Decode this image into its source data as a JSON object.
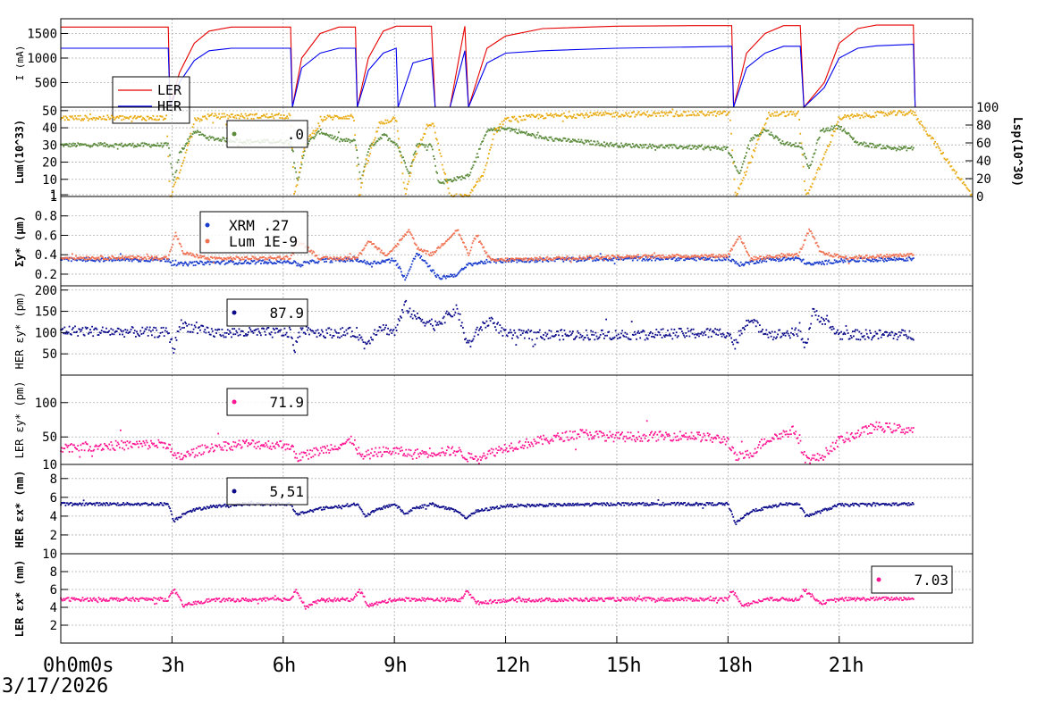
{
  "date_label": "3/17/2026",
  "x_axis": {
    "ticks": [
      {
        "h": 0,
        "label": "0h0m0s"
      },
      {
        "h": 3,
        "label": "3h"
      },
      {
        "h": 6,
        "label": "6h"
      },
      {
        "h": 9,
        "label": "9h"
      },
      {
        "h": 12,
        "label": "12h"
      },
      {
        "h": 15,
        "label": "15h"
      },
      {
        "h": 18,
        "label": "18h"
      },
      {
        "h": 21,
        "label": "21h"
      }
    ],
    "range_h": [
      0,
      24.6
    ]
  },
  "colors": {
    "ler": "#e60000",
    "her": "#0000ee",
    "lum": "#5a8a3a",
    "lsp": "#e8aa10",
    "xrm": "#1a3ccc",
    "lum_sigma": "#f07050",
    "her_pts": "#0a0a8a",
    "ler_pts": "#ff1493",
    "grid": "#b0b0b0"
  },
  "chart_data": [
    {
      "id": "current",
      "type": "line",
      "ylabel": "I (mA)",
      "ylim": [
        0,
        1800
      ],
      "yticks": [
        500,
        1000,
        1500
      ],
      "grid": true,
      "legend": {
        "placement": "top-left",
        "entries": [
          "LER",
          "HER"
        ]
      },
      "series": [
        {
          "name": "LER",
          "x": [
            0,
            2.9,
            2.95,
            3.2,
            3.6,
            4.0,
            4.6,
            6.2,
            6.25,
            6.5,
            7.0,
            7.5,
            7.95,
            8.0,
            8.3,
            8.7,
            9.05,
            9.1,
            10.0,
            10.1,
            10.5,
            10.9,
            11.0,
            11.5,
            12.0,
            13.0,
            15.0,
            17.0,
            18.1,
            18.15,
            18.5,
            19.0,
            19.5,
            19.95,
            20.05,
            20.6,
            21.0,
            21.5,
            22.0,
            23.0,
            23.05,
            24.6
          ],
          "y": [
            1630,
            1630,
            0,
            700,
            1300,
            1550,
            1630,
            1630,
            0,
            1000,
            1500,
            1630,
            1630,
            0,
            1000,
            1550,
            1650,
            1650,
            1650,
            0,
            0,
            1650,
            0,
            1200,
            1450,
            1600,
            1650,
            1660,
            1660,
            0,
            1100,
            1500,
            1660,
            1660,
            0,
            500,
            1300,
            1600,
            1670,
            1670,
            0,
            0
          ]
        },
        {
          "name": "HER",
          "x": [
            0,
            2.9,
            2.95,
            3.2,
            3.6,
            4.0,
            4.6,
            6.2,
            6.25,
            6.5,
            7.0,
            7.5,
            7.95,
            8.0,
            8.3,
            8.7,
            9.05,
            9.1,
            9.5,
            10.0,
            10.1,
            10.5,
            10.9,
            11.0,
            11.5,
            12.0,
            13.0,
            15.0,
            18.1,
            18.15,
            18.5,
            19.0,
            19.5,
            19.95,
            20.05,
            20.6,
            21.0,
            21.5,
            22.0,
            23.0,
            23.05,
            24.6
          ],
          "y": [
            1200,
            1200,
            0,
            500,
            950,
            1150,
            1200,
            1200,
            0,
            800,
            1100,
            1200,
            1200,
            0,
            750,
            1100,
            1200,
            0,
            900,
            1000,
            0,
            0,
            1150,
            0,
            900,
            1100,
            1150,
            1200,
            1240,
            0,
            800,
            1100,
            1240,
            1240,
            0,
            400,
            1000,
            1200,
            1250,
            1280,
            0,
            0
          ]
        }
      ]
    },
    {
      "id": "luminosity",
      "type": "scatter",
      "ylabel": "Lum(10^33)",
      "ylabel2": "Lsp(10^30)",
      "ylim": [
        0,
        52
      ],
      "yticks": [
        1,
        10,
        20,
        30,
        40,
        50
      ],
      "y2lim": [
        0,
        100
      ],
      "y2ticks": [
        0,
        20,
        40,
        60,
        80,
        100
      ],
      "grid": true,
      "legend": {
        "placement": "top-left",
        "entries": [
          ".0"
        ]
      },
      "series": [
        {
          "name": "Lum",
          "axis": "left",
          "x": [
            0,
            2.9,
            3.05,
            3.2,
            3.6,
            4.0,
            5.0,
            6.2,
            6.4,
            6.6,
            7.0,
            7.5,
            7.95,
            8.1,
            8.3,
            8.7,
            9.05,
            9.4,
            9.6,
            10.0,
            10.2,
            11.0,
            11.5,
            12.0,
            13.0,
            15.0,
            18.0,
            18.3,
            18.6,
            19.0,
            19.5,
            19.95,
            20.2,
            20.5,
            21.0,
            21.5,
            22.5,
            23.0
          ],
          "y": [
            30,
            30,
            8,
            25,
            38,
            34,
            32,
            32,
            8,
            30,
            38,
            33,
            32,
            8,
            28,
            36,
            31,
            14,
            30,
            30,
            8,
            12,
            38,
            40,
            34,
            30,
            28,
            12,
            33,
            39,
            31,
            30,
            16,
            38,
            41,
            31,
            28,
            28
          ]
        },
        {
          "name": "Lsp",
          "axis": "right",
          "x": [
            0,
            2.85,
            2.95,
            3.2,
            3.6,
            4.0,
            4.6,
            6.2,
            6.3,
            6.6,
            7.1,
            7.9,
            8.05,
            8.2,
            8.6,
            9.05,
            9.3,
            9.5,
            9.9,
            10.05,
            10.5,
            11.0,
            11.4,
            11.7,
            12.0,
            13.0,
            15.0,
            18.05,
            18.2,
            18.6,
            19.1,
            19.9,
            20.1,
            20.5,
            21.0,
            22.0,
            23.0,
            24.6
          ],
          "y": [
            88,
            88,
            0,
            25,
            85,
            90,
            90,
            90,
            0,
            60,
            88,
            90,
            0,
            30,
            82,
            88,
            0,
            40,
            80,
            80,
            0,
            0,
            25,
            72,
            86,
            90,
            92,
            93,
            0,
            40,
            92,
            93,
            0,
            35,
            88,
            92,
            94,
            0
          ]
        }
      ]
    },
    {
      "id": "sigma_y",
      "type": "scatter",
      "ylabel": "Σy* (μm)",
      "ylim": [
        0.08,
        1.0
      ],
      "yticks": [
        0.2,
        0.4,
        0.6,
        0.8,
        1
      ],
      "grid": true,
      "legend": {
        "placement": "top-left",
        "entries": [
          "XRM  .27",
          "Lum 1E-9"
        ]
      },
      "series": [
        {
          "name": "XRM",
          "x": [
            0,
            2.9,
            3.1,
            4.0,
            6.2,
            6.4,
            7.0,
            8.0,
            8.3,
            9.0,
            9.3,
            9.6,
            10.2,
            10.7,
            11.0,
            11.5,
            12.0,
            15.0,
            18.0,
            18.3,
            19.0,
            19.9,
            20.2,
            21.0,
            23.0
          ],
          "y": [
            0.35,
            0.35,
            0.3,
            0.32,
            0.33,
            0.3,
            0.34,
            0.35,
            0.31,
            0.35,
            0.15,
            0.42,
            0.16,
            0.2,
            0.3,
            0.33,
            0.34,
            0.36,
            0.36,
            0.3,
            0.35,
            0.36,
            0.3,
            0.34,
            0.36
          ]
        },
        {
          "name": "Lum 1E-9",
          "x": [
            0,
            2.9,
            3.1,
            3.3,
            4.0,
            6.2,
            6.4,
            7.0,
            8.0,
            8.3,
            8.8,
            9.4,
            9.6,
            10.0,
            10.7,
            11.0,
            11.2,
            11.6,
            12.0,
            15.0,
            18.0,
            18.3,
            18.6,
            19.5,
            19.9,
            20.2,
            20.5,
            21.2,
            23.0
          ],
          "y": [
            0.37,
            0.37,
            0.62,
            0.42,
            0.36,
            0.37,
            0.55,
            0.36,
            0.37,
            0.55,
            0.38,
            0.66,
            0.48,
            0.4,
            0.66,
            0.4,
            0.6,
            0.34,
            0.35,
            0.38,
            0.39,
            0.6,
            0.36,
            0.39,
            0.4,
            0.66,
            0.42,
            0.37,
            0.4
          ]
        }
      ]
    },
    {
      "id": "her_eps_y",
      "type": "scatter",
      "ylabel": "HER εy* (pm)",
      "ylim": [
        0,
        210
      ],
      "yticks": [
        50,
        100,
        150,
        200
      ],
      "grid": true,
      "legend": {
        "placement": "top-left",
        "entries": [
          "87.9"
        ]
      },
      "series": [
        {
          "name": "87.9",
          "x": [
            0,
            2.9,
            3.05,
            3.2,
            4.0,
            6.2,
            6.3,
            6.5,
            7.0,
            8.0,
            8.2,
            8.6,
            9.0,
            9.3,
            9.5,
            9.9,
            10.1,
            10.7,
            10.9,
            11.0,
            11.3,
            11.6,
            12.0,
            15.0,
            18.0,
            18.2,
            18.5,
            19.2,
            19.9,
            20.1,
            20.3,
            21.0,
            23.0
          ],
          "y": [
            105,
            100,
            60,
            120,
            100,
            100,
            60,
            110,
            100,
            100,
            70,
            115,
            100,
            165,
            140,
            125,
            120,
            155,
            90,
            70,
            110,
            130,
            95,
            95,
            100,
            70,
            130,
            95,
            100,
            70,
            150,
            95,
            95
          ]
        }
      ]
    },
    {
      "id": "ler_eps_y",
      "type": "scatter",
      "ylabel": "LER εy* (pm)",
      "ylim": [
        10,
        140
      ],
      "yticks": [
        10,
        50,
        100
      ],
      "grid": true,
      "legend": {
        "placement": "top-left",
        "entries": [
          "71.9"
        ]
      },
      "series": [
        {
          "name": "71.9",
          "x": [
            0,
            2.9,
            3.05,
            3.3,
            4.0,
            5.0,
            6.2,
            6.35,
            7.0,
            7.9,
            8.1,
            8.5,
            9.0,
            9.5,
            10.0,
            10.7,
            11.0,
            11.5,
            12.0,
            13.0,
            14.0,
            15.0,
            17.0,
            18.0,
            18.2,
            18.6,
            19.0,
            19.8,
            20.1,
            20.5,
            21.0,
            22.0,
            23.0
          ],
          "y": [
            35,
            40,
            20,
            22,
            35,
            40,
            38,
            20,
            30,
            45,
            20,
            28,
            30,
            25,
            28,
            30,
            20,
            25,
            35,
            45,
            55,
            50,
            52,
            45,
            20,
            25,
            45,
            60,
            18,
            20,
            45,
            65,
            60
          ]
        }
      ]
    },
    {
      "id": "her_eps_x",
      "type": "scatter",
      "ylabel": "HER εx* (nm)",
      "ylim": [
        0,
        9.5
      ],
      "yticks": [
        2,
        4,
        6,
        8
      ],
      "grid": true,
      "legend": {
        "placement": "top-left",
        "entries": [
          "5,51"
        ]
      },
      "series": [
        {
          "name": "5,51",
          "x": [
            0,
            2.9,
            3.05,
            3.4,
            4.0,
            5.0,
            6.2,
            6.35,
            7.0,
            8.0,
            8.2,
            8.6,
            9.0,
            9.3,
            9.5,
            10.0,
            10.7,
            10.9,
            11.2,
            12.0,
            15.0,
            18.0,
            18.2,
            18.6,
            19.5,
            19.9,
            20.1,
            20.5,
            21.0,
            23.0
          ],
          "y": [
            5.3,
            5.3,
            3.5,
            4.5,
            5.0,
            5.3,
            5.3,
            4.2,
            4.8,
            5.3,
            4.0,
            4.8,
            5.3,
            4.2,
            4.8,
            5.3,
            4.5,
            3.8,
            4.5,
            5.1,
            5.3,
            5.3,
            3.2,
            4.5,
            5.3,
            5.3,
            4.0,
            4.5,
            5.2,
            5.3
          ]
        }
      ]
    },
    {
      "id": "ler_eps_x",
      "type": "scatter",
      "ylabel": "LER εx* (nm)",
      "ylim": [
        0,
        10
      ],
      "yticks": [
        2,
        4,
        6,
        8,
        10
      ],
      "grid": true,
      "legend": {
        "placement": "top-right",
        "entries": [
          "7.03"
        ]
      },
      "series": [
        {
          "name": "7.03",
          "x": [
            0,
            2.9,
            3.05,
            3.3,
            4.0,
            6.2,
            6.35,
            6.6,
            7.0,
            7.9,
            8.05,
            8.3,
            9.0,
            10.0,
            10.8,
            10.95,
            11.2,
            12.0,
            15.0,
            18.0,
            18.1,
            18.4,
            19.0,
            19.9,
            20.05,
            20.5,
            21.0,
            23.0
          ],
          "y": [
            4.9,
            4.9,
            6.0,
            4.2,
            4.8,
            4.9,
            6.0,
            4.0,
            4.8,
            4.9,
            6.0,
            4.2,
            4.9,
            4.9,
            4.8,
            6.0,
            4.5,
            4.8,
            4.9,
            4.9,
            6.0,
            4.2,
            4.9,
            4.9,
            6.0,
            4.5,
            4.9,
            5.0
          ]
        }
      ]
    }
  ]
}
